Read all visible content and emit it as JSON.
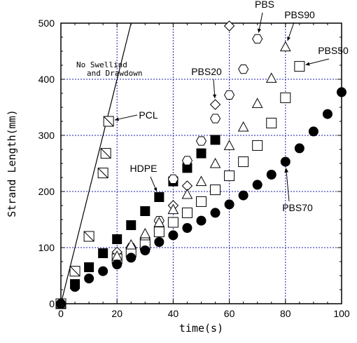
{
  "chart_data": {
    "type": "scatter",
    "xlabel": "time(s)",
    "ylabel": "Strand Length(mm)",
    "xlim": [
      0,
      100
    ],
    "ylim": [
      0,
      500
    ],
    "xticks": [
      0,
      20,
      40,
      60,
      80,
      100
    ],
    "yticks": [
      0,
      100,
      200,
      300,
      400,
      500
    ],
    "grid": true,
    "series": [
      {
        "name": "PCL",
        "marker": "square-x",
        "points": [
          [
            15,
            233
          ],
          [
            16,
            268
          ],
          [
            17,
            325
          ],
          [
            5,
            58
          ],
          [
            10,
            120
          ]
        ]
      },
      {
        "name": "HDPE",
        "marker": "filled-square",
        "points": [
          [
            0,
            0
          ],
          [
            5,
            35
          ],
          [
            10,
            65
          ],
          [
            15,
            90
          ],
          [
            20,
            115
          ],
          [
            25,
            140
          ],
          [
            30,
            165
          ],
          [
            35,
            190
          ],
          [
            40,
            218
          ],
          [
            45,
            242
          ],
          [
            50,
            268
          ],
          [
            55,
            292
          ]
        ]
      },
      {
        "name": "PBS",
        "marker": "open-hexagon",
        "points": [
          [
            0,
            0
          ],
          [
            20,
            88
          ],
          [
            25,
            100
          ],
          [
            30,
            115
          ],
          [
            35,
            148
          ],
          [
            40,
            222
          ],
          [
            45,
            255
          ],
          [
            50,
            290
          ],
          [
            55,
            330
          ],
          [
            60,
            372
          ],
          [
            65,
            418
          ],
          [
            70,
            472
          ]
        ]
      },
      {
        "name": "PBS20",
        "marker": "open-diamond",
        "points": [
          [
            0,
            0
          ],
          [
            20,
            92
          ],
          [
            25,
            100
          ],
          [
            30,
            115
          ],
          [
            40,
            175
          ],
          [
            45,
            210
          ],
          [
            55,
            355
          ],
          [
            60,
            495
          ]
        ]
      },
      {
        "name": "PBS50",
        "marker": "open-square",
        "points": [
          [
            0,
            0
          ],
          [
            20,
            80
          ],
          [
            25,
            92
          ],
          [
            30,
            105
          ],
          [
            35,
            128
          ],
          [
            40,
            145
          ],
          [
            45,
            162
          ],
          [
            50,
            182
          ],
          [
            55,
            203
          ],
          [
            60,
            228
          ],
          [
            65,
            253
          ],
          [
            70,
            282
          ],
          [
            75,
            322
          ],
          [
            80,
            367
          ],
          [
            85,
            423
          ]
        ]
      },
      {
        "name": "PBS90",
        "marker": "open-triangle",
        "points": [
          [
            0,
            0
          ],
          [
            20,
            85
          ],
          [
            25,
            105
          ],
          [
            30,
            125
          ],
          [
            35,
            145
          ],
          [
            40,
            168
          ],
          [
            45,
            195
          ],
          [
            50,
            218
          ],
          [
            55,
            250
          ],
          [
            60,
            282
          ],
          [
            65,
            315
          ],
          [
            70,
            357
          ],
          [
            75,
            402
          ],
          [
            80,
            458
          ]
        ]
      },
      {
        "name": "PBS70",
        "marker": "filled-circle",
        "points": [
          [
            0,
            0
          ],
          [
            5,
            30
          ],
          [
            10,
            45
          ],
          [
            15,
            58
          ],
          [
            20,
            70
          ],
          [
            25,
            82
          ],
          [
            30,
            95
          ],
          [
            35,
            110
          ],
          [
            40,
            122
          ],
          [
            45,
            135
          ],
          [
            50,
            148
          ],
          [
            55,
            162
          ],
          [
            60,
            177
          ],
          [
            65,
            193
          ],
          [
            70,
            212
          ],
          [
            75,
            230
          ],
          [
            80,
            253
          ],
          [
            85,
            277
          ],
          [
            90,
            307
          ],
          [
            95,
            338
          ],
          [
            100,
            377
          ]
        ]
      }
    ],
    "reference_line": {
      "label": "No Swellind\nand Drawdown",
      "points": [
        [
          0,
          0
        ],
        [
          25,
          500
        ]
      ]
    },
    "annotations": [
      {
        "text": "PBS",
        "target": [
          70,
          472
        ]
      },
      {
        "text": "PBS90",
        "target": [
          80,
          458
        ]
      },
      {
        "text": "PBS50",
        "target": [
          85,
          423
        ]
      },
      {
        "text": "PBS20",
        "target": [
          55,
          355
        ]
      },
      {
        "text": "PCL",
        "target": [
          17,
          325
        ]
      },
      {
        "text": "HDPE",
        "target": [
          35,
          190
        ]
      },
      {
        "text": "PBS70",
        "target": [
          80,
          253
        ]
      }
    ]
  }
}
